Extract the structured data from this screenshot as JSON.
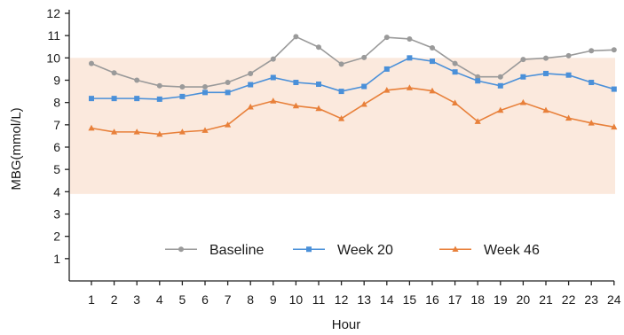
{
  "chart_data": {
    "type": "line",
    "title": "",
    "xlabel": "Hour",
    "ylabel": "MBG(mmol/L)",
    "x": [
      1,
      2,
      3,
      4,
      5,
      6,
      7,
      8,
      9,
      10,
      11,
      12,
      13,
      14,
      15,
      16,
      17,
      18,
      19,
      20,
      21,
      22,
      23,
      24
    ],
    "ylim": [
      0,
      12
    ],
    "yticks": [
      1,
      2,
      3,
      4,
      5,
      6,
      7,
      8,
      9,
      10,
      11,
      12
    ],
    "target_band": [
      3.9,
      10.0
    ],
    "grid": false,
    "legend_position": "bottom-center",
    "colors": {
      "band": "#fbe9dd"
    },
    "series": [
      {
        "name": "Baseline",
        "color": "#9a9a9a",
        "marker": "circle",
        "values": [
          9.75,
          9.33,
          9.0,
          8.75,
          8.7,
          8.7,
          8.9,
          9.3,
          9.95,
          10.95,
          10.48,
          9.72,
          10.02,
          10.92,
          10.85,
          10.45,
          9.75,
          9.15,
          9.15,
          9.93,
          9.99,
          10.1,
          10.32,
          10.36
        ]
      },
      {
        "name": "Week 20",
        "color": "#4a90d9",
        "marker": "square",
        "values": [
          8.18,
          8.18,
          8.18,
          8.15,
          8.27,
          8.45,
          8.45,
          8.8,
          9.12,
          8.9,
          8.82,
          8.5,
          8.72,
          9.5,
          10.0,
          9.85,
          9.37,
          8.97,
          8.75,
          9.15,
          9.3,
          9.23,
          8.9,
          8.6
        ]
      },
      {
        "name": "Week 46",
        "color": "#e8803a",
        "marker": "triangle",
        "values": [
          6.85,
          6.68,
          6.68,
          6.58,
          6.68,
          6.75,
          7.0,
          7.8,
          8.07,
          7.85,
          7.73,
          7.28,
          7.92,
          8.55,
          8.66,
          8.52,
          7.98,
          7.15,
          7.65,
          8.0,
          7.65,
          7.3,
          7.08,
          6.9
        ]
      }
    ]
  }
}
